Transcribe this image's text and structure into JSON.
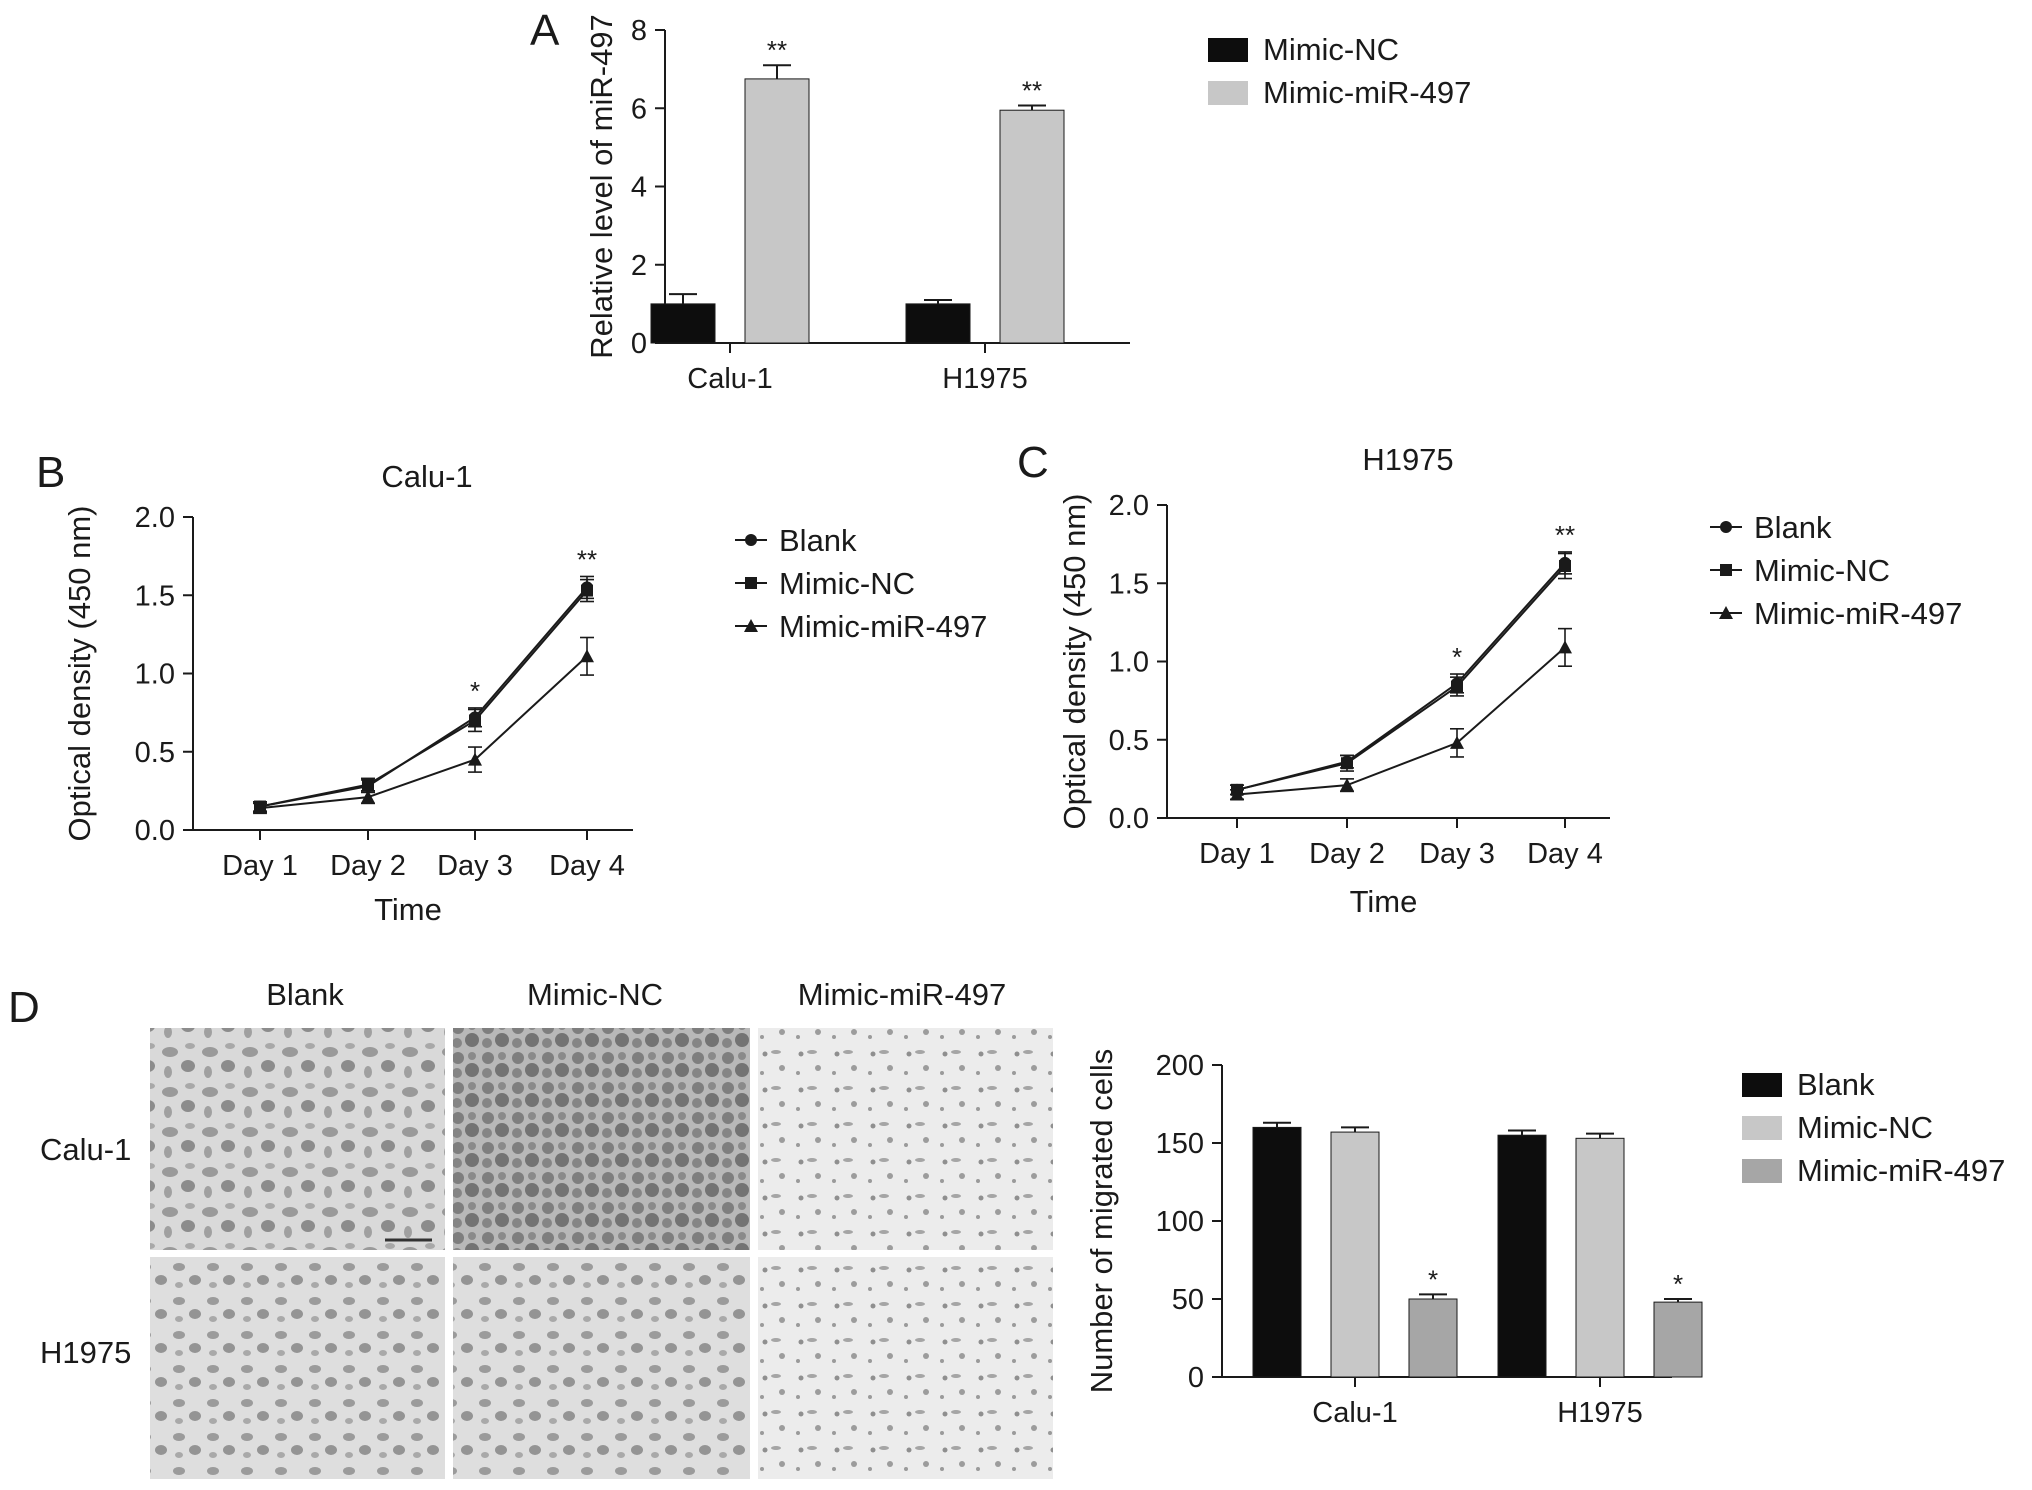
{
  "panels": {
    "A": {
      "letter": "A"
    },
    "B": {
      "letter": "B"
    },
    "C": {
      "letter": "C"
    },
    "D": {
      "letter": "D",
      "image_columns": [
        "Blank",
        "Mimic-NC",
        "Mimic-miR-497"
      ],
      "image_rows": [
        "Calu-1",
        "H1975"
      ]
    }
  },
  "colors": {
    "black": "#0d0d0d",
    "light_gray": "#c7c7c7",
    "mid_gray": "#a6a6a6",
    "axis": "#1a1a1a"
  },
  "chart_data": [
    {
      "id": "A",
      "type": "bar",
      "title": "",
      "xlabel": "",
      "ylabel": "Relative level of miR-497",
      "categories": [
        "Calu-1",
        "H1975"
      ],
      "series": [
        {
          "name": "Mimic-NC",
          "values": [
            1.0,
            1.0
          ],
          "errors": [
            0.25,
            0.1
          ],
          "color": "#0d0d0d"
        },
        {
          "name": "Mimic-miR-497",
          "values": [
            6.75,
            5.95
          ],
          "errors": [
            0.35,
            0.12
          ],
          "color": "#c7c7c7"
        }
      ],
      "annotations": [
        {
          "category": "Calu-1",
          "series": "Mimic-miR-497",
          "text": "**"
        },
        {
          "category": "H1975",
          "series": "Mimic-miR-497",
          "text": "**"
        }
      ],
      "ylim": [
        0,
        8
      ],
      "yticks": [
        0,
        2,
        4,
        6,
        8
      ],
      "legend_position": "right",
      "grid": false
    },
    {
      "id": "B",
      "type": "line",
      "title": "Calu-1",
      "xlabel": "Time",
      "ylabel": "Optical density (450 nm)",
      "categories": [
        "Day 1",
        "Day 2",
        "Day 3",
        "Day 4"
      ],
      "series": [
        {
          "name": "Blank",
          "marker": "circle",
          "values": [
            0.15,
            0.28,
            0.72,
            1.55
          ],
          "errors": [
            0.03,
            0.04,
            0.06,
            0.07
          ]
        },
        {
          "name": "Mimic-NC",
          "marker": "square",
          "values": [
            0.15,
            0.29,
            0.7,
            1.53
          ],
          "errors": [
            0.03,
            0.04,
            0.07,
            0.07
          ]
        },
        {
          "name": "Mimic-miR-497",
          "marker": "triangle",
          "values": [
            0.14,
            0.21,
            0.45,
            1.11
          ],
          "errors": [
            0.03,
            0.04,
            0.08,
            0.12
          ]
        }
      ],
      "annotations": [
        {
          "category": "Day 3",
          "text": "*"
        },
        {
          "category": "Day 4",
          "text": "**"
        }
      ],
      "ylim": [
        0,
        2.0
      ],
      "yticks": [
        "0.0",
        "0.5",
        "1.0",
        "1.5",
        "2.0"
      ],
      "legend_position": "right",
      "grid": false
    },
    {
      "id": "C",
      "type": "line",
      "title": "H1975",
      "xlabel": "Time",
      "ylabel": "Optical density (450 nm)",
      "categories": [
        "Day 1",
        "Day 2",
        "Day 3",
        "Day 4"
      ],
      "series": [
        {
          "name": "Blank",
          "marker": "circle",
          "values": [
            0.18,
            0.36,
            0.86,
            1.63
          ],
          "errors": [
            0.03,
            0.04,
            0.06,
            0.07
          ]
        },
        {
          "name": "Mimic-NC",
          "marker": "square",
          "values": [
            0.18,
            0.35,
            0.84,
            1.61
          ],
          "errors": [
            0.03,
            0.05,
            0.06,
            0.08
          ]
        },
        {
          "name": "Mimic-miR-497",
          "marker": "triangle",
          "values": [
            0.15,
            0.21,
            0.48,
            1.09
          ],
          "errors": [
            0.03,
            0.04,
            0.09,
            0.12
          ]
        }
      ],
      "annotations": [
        {
          "category": "Day 3",
          "text": "*"
        },
        {
          "category": "Day 4",
          "text": "**"
        }
      ],
      "ylim": [
        0,
        2.0
      ],
      "yticks": [
        "0.0",
        "0.5",
        "1.0",
        "1.5",
        "2.0"
      ],
      "legend_position": "right",
      "grid": false
    },
    {
      "id": "D",
      "type": "bar",
      "title": "",
      "xlabel": "",
      "ylabel": "Number of migrated cells",
      "categories": [
        "Calu-1",
        "H1975"
      ],
      "series": [
        {
          "name": "Blank",
          "values": [
            160,
            155
          ],
          "errors": [
            3,
            3
          ],
          "color": "#0d0d0d"
        },
        {
          "name": "Mimic-NC",
          "values": [
            157,
            153
          ],
          "errors": [
            3,
            3
          ],
          "color": "#c7c7c7"
        },
        {
          "name": "Mimic-miR-497",
          "values": [
            50,
            48
          ],
          "errors": [
            3,
            2
          ],
          "color": "#a6a6a6"
        }
      ],
      "annotations": [
        {
          "category": "Calu-1",
          "series": "Mimic-miR-497",
          "text": "*"
        },
        {
          "category": "H1975",
          "series": "Mimic-miR-497",
          "text": "*"
        }
      ],
      "ylim": [
        0,
        200
      ],
      "yticks": [
        0,
        50,
        100,
        150,
        200
      ],
      "legend_position": "right",
      "grid": false
    }
  ]
}
